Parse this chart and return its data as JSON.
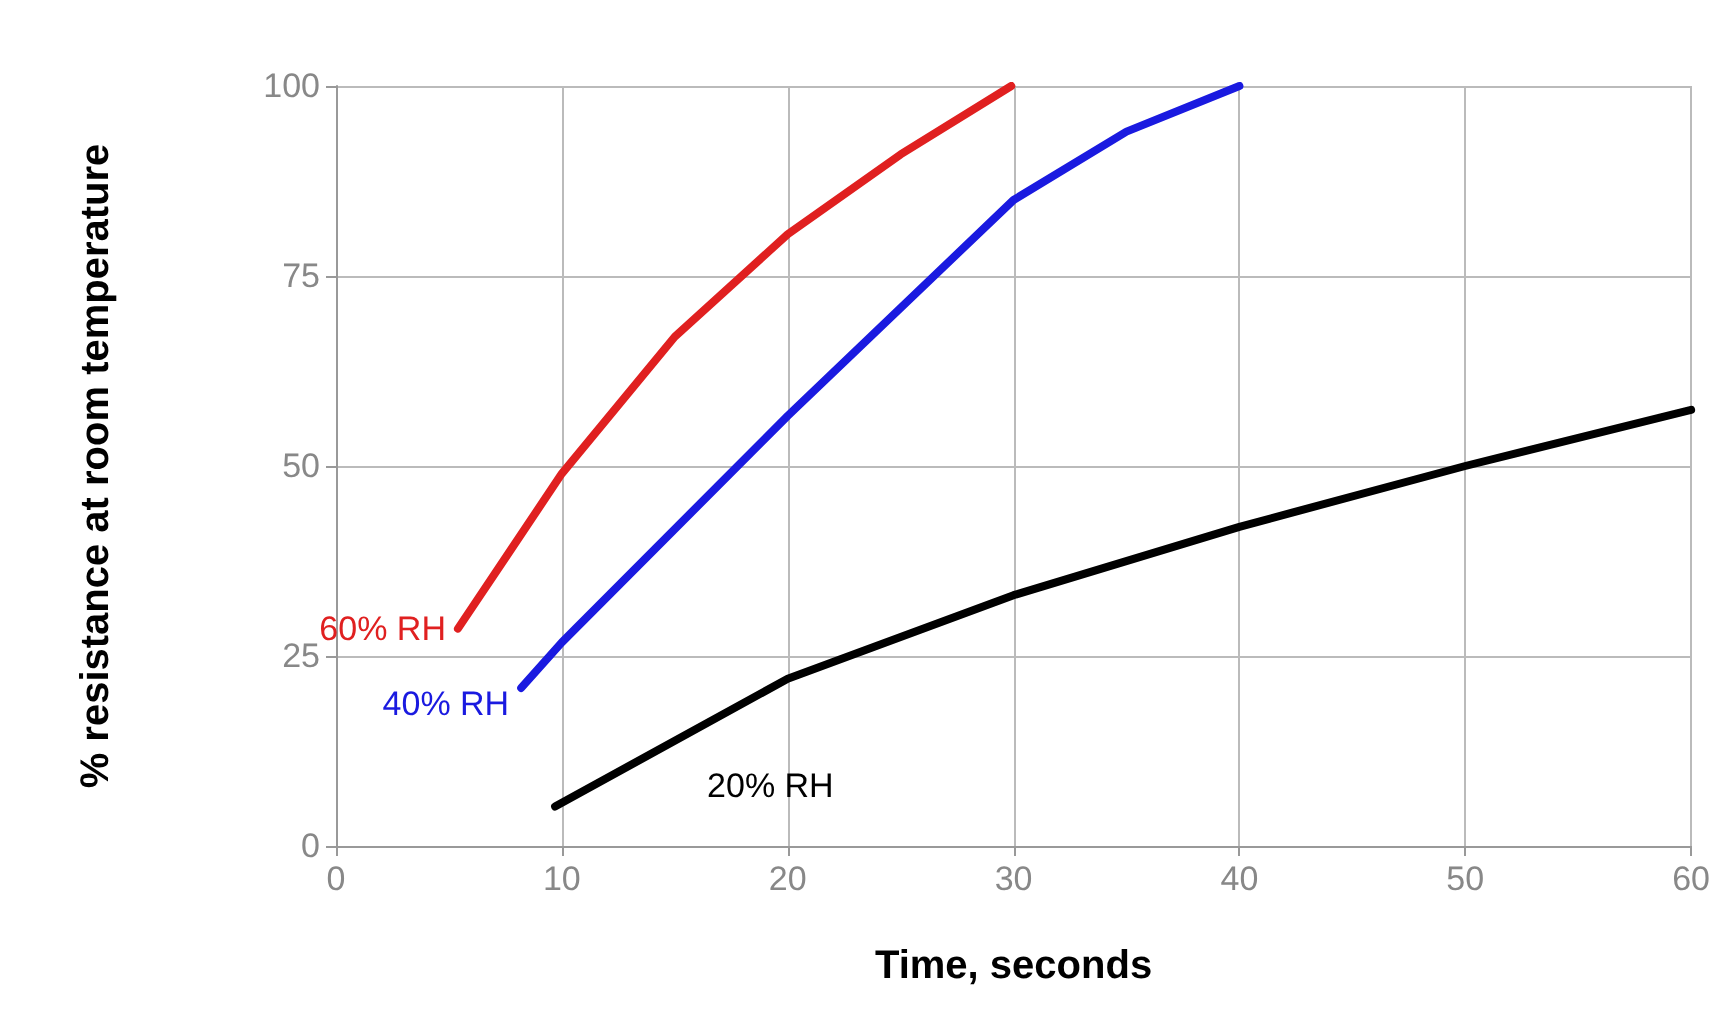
{
  "chart_data": {
    "type": "line",
    "xlabel": "Time, seconds",
    "ylabel": "% resistance at room temperature",
    "xlim": [
      0,
      60
    ],
    "ylim": [
      0,
      100
    ],
    "xticks": [
      0,
      10,
      20,
      30,
      40,
      50,
      60
    ],
    "yticks": [
      0,
      25,
      50,
      75,
      100
    ],
    "grid": true,
    "legend": false,
    "marker": "none",
    "line_style": "solid",
    "series": [
      {
        "name": "60% RH",
        "color": "#e02020",
        "x": [
          5.4,
          10,
          15,
          20,
          25,
          29.9
        ],
        "values": [
          28.6,
          49,
          67,
          80.5,
          91,
          100
        ]
      },
      {
        "name": "40% RH",
        "color": "#1a1ae0",
        "x": [
          8.2,
          10,
          20,
          30,
          35,
          40
        ],
        "values": [
          20.8,
          26.8,
          56.6,
          85,
          94,
          100
        ]
      },
      {
        "name": "20% RH",
        "color": "#000000",
        "x": [
          9.7,
          20,
          30,
          40,
          50,
          60
        ],
        "values": [
          5.2,
          22,
          33,
          42,
          50,
          57.4
        ]
      }
    ]
  }
}
